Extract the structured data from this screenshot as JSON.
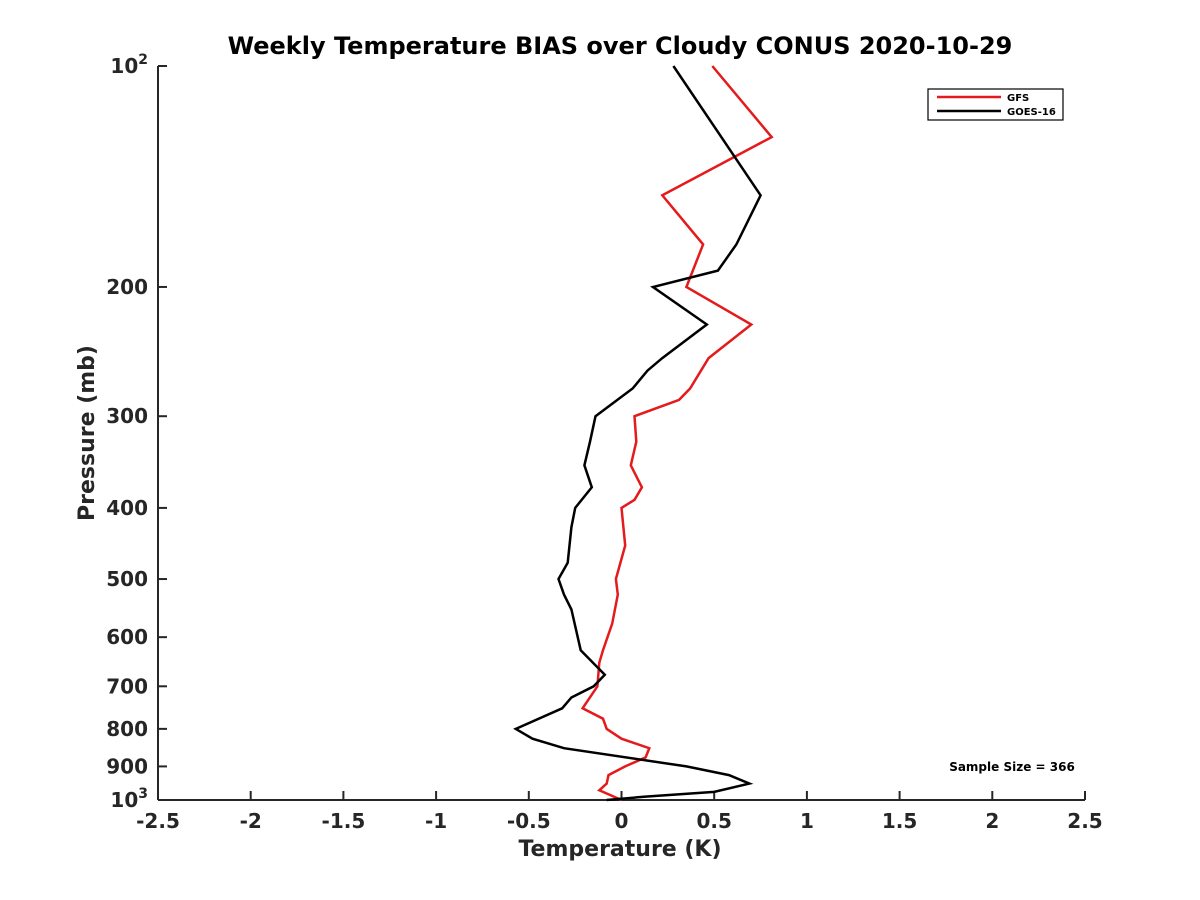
{
  "colors": {
    "GFS": "#e41a1c",
    "GOES-16": "#000000",
    "axis": "#262626"
  },
  "chart_data": {
    "type": "line",
    "title": "Weekly Temperature BIAS over Cloudy CONUS 2020-10-29",
    "xlabel": "Temperature (K)",
    "ylabel": "Pressure (mb)",
    "xlim": [
      -2.5,
      2.5
    ],
    "ylim": [
      1000,
      100
    ],
    "yscale": "log",
    "y_reversed": true,
    "grid": false,
    "legend_position": "top-right",
    "annotation": "Sample Size = 366",
    "xticks": [
      {
        "value": -2.5,
        "label": "-2.5"
      },
      {
        "value": -2,
        "label": "-2"
      },
      {
        "value": -1.5,
        "label": "-1.5"
      },
      {
        "value": -1,
        "label": "-1"
      },
      {
        "value": -0.5,
        "label": "-0.5"
      },
      {
        "value": 0,
        "label": "0"
      },
      {
        "value": 0.5,
        "label": "0.5"
      },
      {
        "value": 1,
        "label": "1"
      },
      {
        "value": 1.5,
        "label": "1.5"
      },
      {
        "value": 2,
        "label": "2"
      },
      {
        "value": 2.5,
        "label": "2.5"
      }
    ],
    "yticks": [
      {
        "value": 100,
        "label": "10",
        "sup": "2"
      },
      {
        "value": 200,
        "label": "200"
      },
      {
        "value": 300,
        "label": "300"
      },
      {
        "value": 400,
        "label": "400"
      },
      {
        "value": 500,
        "label": "500"
      },
      {
        "value": 600,
        "label": "600"
      },
      {
        "value": 700,
        "label": "700"
      },
      {
        "value": 800,
        "label": "800"
      },
      {
        "value": 900,
        "label": "900"
      },
      {
        "value": 1000,
        "label": "10",
        "sup": "3"
      }
    ],
    "series": [
      {
        "name": "GFS",
        "color": "#e41a1c",
        "points": [
          [
            0.49,
            100
          ],
          [
            0.81,
            125
          ],
          [
            0.22,
            150
          ],
          [
            0.44,
            175
          ],
          [
            0.35,
            200
          ],
          [
            0.7,
            225
          ],
          [
            0.47,
            250
          ],
          [
            0.37,
            275
          ],
          [
            0.31,
            285
          ],
          [
            0.07,
            300
          ],
          [
            0.08,
            325
          ],
          [
            0.05,
            350
          ],
          [
            0.11,
            375
          ],
          [
            0.07,
            390
          ],
          [
            0.0,
            400
          ],
          [
            0.02,
            450
          ],
          [
            -0.03,
            500
          ],
          [
            -0.02,
            525
          ],
          [
            -0.05,
            575
          ],
          [
            -0.1,
            625
          ],
          [
            -0.12,
            650
          ],
          [
            -0.13,
            700
          ],
          [
            -0.21,
            750
          ],
          [
            -0.1,
            775
          ],
          [
            -0.08,
            800
          ],
          [
            0.0,
            825
          ],
          [
            0.15,
            850
          ],
          [
            0.13,
            875
          ],
          [
            0.02,
            900
          ],
          [
            -0.07,
            925
          ],
          [
            -0.08,
            950
          ],
          [
            -0.12,
            970
          ],
          [
            0.0,
            1000
          ]
        ]
      },
      {
        "name": "GOES-16",
        "color": "#000000",
        "points": [
          [
            0.28,
            100
          ],
          [
            0.75,
            150
          ],
          [
            0.62,
            175
          ],
          [
            0.52,
            190
          ],
          [
            0.17,
            200
          ],
          [
            0.46,
            225
          ],
          [
            0.22,
            250
          ],
          [
            0.14,
            260
          ],
          [
            0.06,
            275
          ],
          [
            -0.14,
            300
          ],
          [
            -0.17,
            325
          ],
          [
            -0.2,
            350
          ],
          [
            -0.16,
            375
          ],
          [
            -0.25,
            400
          ],
          [
            -0.27,
            425
          ],
          [
            -0.29,
            475
          ],
          [
            -0.34,
            500
          ],
          [
            -0.31,
            525
          ],
          [
            -0.27,
            550
          ],
          [
            -0.22,
            625
          ],
          [
            -0.09,
            675
          ],
          [
            -0.15,
            700
          ],
          [
            -0.27,
            725
          ],
          [
            -0.32,
            750
          ],
          [
            -0.57,
            800
          ],
          [
            -0.48,
            825
          ],
          [
            -0.31,
            850
          ],
          [
            0.35,
            900
          ],
          [
            0.58,
            925
          ],
          [
            0.69,
            950
          ],
          [
            0.5,
            975
          ],
          [
            0.12,
            990
          ],
          [
            -0.08,
            1000
          ]
        ]
      }
    ]
  }
}
